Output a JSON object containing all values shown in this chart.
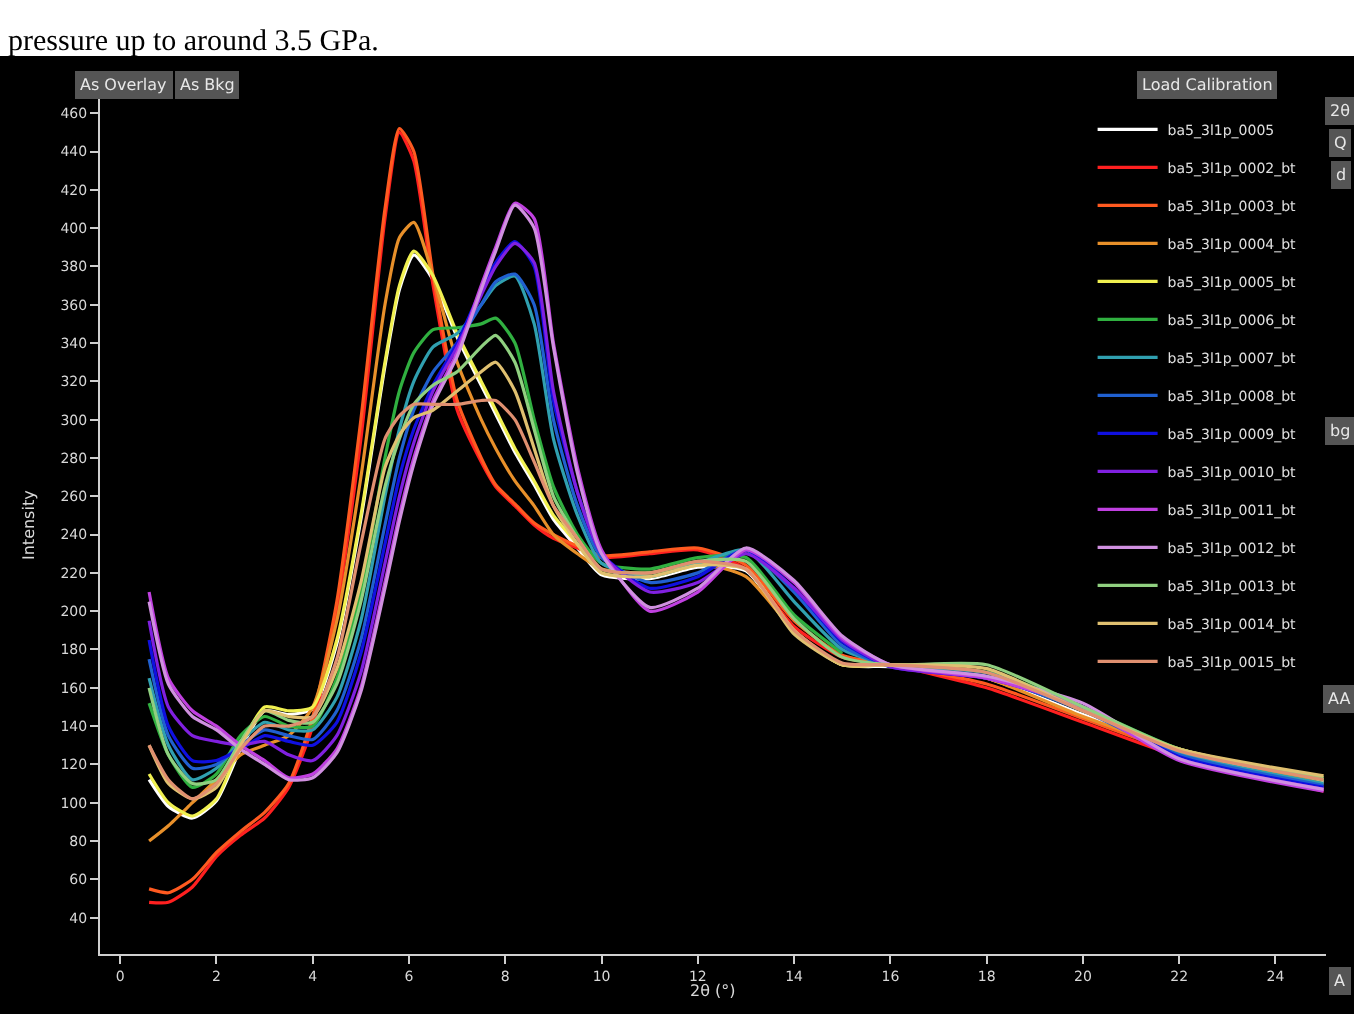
{
  "chart_data": {
    "type": "line",
    "xlabel": "2θ (°)",
    "ylabel": "Intensity",
    "annotations": [
      "pressure up to around 3.5 GPa.",
      "As Overlay",
      "As Bkg",
      "Load Calibration",
      "2θ",
      "Q",
      "d",
      "bg",
      "AA",
      "A"
    ],
    "x": [
      0.6,
      1,
      1.5,
      2,
      2.5,
      3,
      3.5,
      4,
      4.5,
      5,
      5.5,
      5.8,
      6.1,
      6.5,
      7,
      7.5,
      7.8,
      8.2,
      8.6,
      9,
      9.5,
      10,
      11,
      12,
      13,
      14,
      15,
      16,
      18,
      20,
      22,
      25
    ],
    "xlim": [
      -0.42,
      25.05
    ],
    "xticks": [
      0,
      2,
      4,
      6,
      8,
      10,
      12,
      14,
      16,
      18,
      20,
      22,
      24
    ],
    "ylim": [
      21,
      469
    ],
    "yticks": [
      40,
      60,
      80,
      100,
      120,
      140,
      160,
      180,
      200,
      220,
      240,
      260,
      280,
      300,
      320,
      340,
      360,
      380,
      400,
      420,
      440,
      460
    ],
    "grid": false,
    "legend": "top right",
    "marker": "none",
    "line_style": "solid",
    "series": [
      {
        "name": "ba5_3l1p_0005",
        "color": "#ffffff",
        "values": [
          112,
          98,
          92,
          101,
          128,
          148,
          146,
          149,
          183,
          248,
          328,
          368,
          386,
          373,
          343,
          318,
          303,
          283,
          266,
          248,
          233,
          219,
          217,
          223,
          221,
          189,
          172,
          171,
          165,
          146,
          127,
          111
        ]
      },
      {
        "name": "ba5_3l1p_0002_bt",
        "color": "#ff2020",
        "values": [
          48,
          48,
          56,
          72,
          83,
          92,
          108,
          140,
          200,
          290,
          405,
          450,
          435,
          370,
          305,
          278,
          265,
          255,
          245,
          238,
          233,
          228,
          230,
          232,
          222,
          192,
          176,
          172,
          160,
          142,
          124,
          106
        ]
      },
      {
        "name": "ba5_3l1p_0003_bt",
        "color": "#ff5a20",
        "values": [
          55,
          53,
          60,
          74,
          85,
          95,
          110,
          145,
          205,
          300,
          410,
          452,
          440,
          375,
          310,
          280,
          266,
          256,
          246,
          240,
          234,
          229,
          231,
          233,
          224,
          195,
          177,
          172,
          162,
          144,
          126,
          108
        ]
      },
      {
        "name": "ba5_3l1p_0004_bt",
        "color": "#e8902a",
        "values": [
          80,
          88,
          100,
          112,
          125,
          130,
          135,
          150,
          195,
          270,
          360,
          395,
          403,
          375,
          330,
          300,
          285,
          268,
          255,
          240,
          230,
          222,
          220,
          225,
          218,
          190,
          172,
          172,
          165,
          145,
          128,
          110
        ]
      },
      {
        "name": "ba5_3l1p_0005_bt",
        "color": "#f0f050",
        "values": [
          115,
          100,
          93,
          102,
          130,
          150,
          148,
          150,
          185,
          250,
          330,
          370,
          388,
          375,
          345,
          320,
          305,
          285,
          268,
          250,
          235,
          220,
          218,
          224,
          222,
          190,
          172,
          172,
          168,
          148,
          128,
          112
        ]
      },
      {
        "name": "ba5_3l1p_0006_bt",
        "color": "#30b040",
        "values": [
          152,
          125,
          108,
          115,
          135,
          145,
          140,
          140,
          165,
          210,
          280,
          315,
          335,
          347,
          348,
          350,
          353,
          340,
          300,
          265,
          240,
          225,
          222,
          228,
          228,
          198,
          178,
          null,
          170,
          150,
          128,
          112
        ]
      },
      {
        "name": "ba5_3l1p_0007_bt",
        "color": "#30a0b0",
        "values": [
          165,
          130,
          112,
          118,
          132,
          142,
          138,
          138,
          155,
          195,
          260,
          295,
          320,
          338,
          345,
          360,
          370,
          375,
          350,
          290,
          250,
          225,
          218,
          225,
          232,
          205,
          180,
          172,
          168,
          150,
          126,
          110
        ]
      },
      {
        "name": "ba5_3l1p_0008_bt",
        "color": "#2060d0",
        "values": [
          175,
          135,
          118,
          120,
          130,
          138,
          135,
          133,
          148,
          185,
          245,
          280,
          305,
          325,
          340,
          360,
          372,
          376,
          360,
          300,
          255,
          228,
          215,
          220,
          232,
          210,
          182,
          171,
          166,
          148,
          125,
          109
        ]
      },
      {
        "name": "ba5_3l1p_0009_bt",
        "color": "#1010e0",
        "values": [
          185,
          140,
          122,
          122,
          128,
          135,
          132,
          130,
          142,
          178,
          235,
          270,
          295,
          318,
          340,
          368,
          382,
          393,
          380,
          310,
          262,
          230,
          212,
          218,
          232,
          212,
          184,
          171,
          165,
          150,
          124,
          108
        ]
      },
      {
        "name": "ba5_3l1p_0010_bt",
        "color": "#8020e0",
        "values": [
          195,
          150,
          135,
          132,
          130,
          132,
          125,
          122,
          135,
          168,
          225,
          260,
          288,
          315,
          338,
          365,
          380,
          392,
          382,
          315,
          262,
          230,
          210,
          215,
          230,
          212,
          185,
          171,
          165,
          150,
          123,
          107
        ]
      },
      {
        "name": "ba5_3l1p_0011_bt",
        "color": "#c040e0",
        "values": [
          210,
          165,
          148,
          140,
          130,
          122,
          113,
          115,
          128,
          160,
          215,
          250,
          280,
          310,
          335,
          370,
          390,
          413,
          405,
          340,
          275,
          232,
          200,
          210,
          232,
          215,
          186,
          172,
          165,
          150,
          122,
          106
        ]
      },
      {
        "name": "ba5_3l1p_0012_bt",
        "color": "#d090e0",
        "values": [
          205,
          162,
          145,
          138,
          128,
          120,
          112,
          113,
          126,
          158,
          212,
          247,
          277,
          308,
          333,
          368,
          388,
          412,
          400,
          338,
          272,
          230,
          202,
          212,
          233,
          216,
          187,
          172,
          166,
          152,
          123,
          107
        ]
      },
      {
        "name": "ba5_3l1p_0013_bt",
        "color": "#90d080",
        "values": [
          160,
          125,
          110,
          112,
          132,
          148,
          143,
          142,
          162,
          205,
          265,
          290,
          308,
          318,
          325,
          338,
          344,
          330,
          295,
          260,
          238,
          222,
          220,
          226,
          226,
          196,
          176,
          172,
          172,
          150,
          128,
          113
        ]
      },
      {
        "name": "ba5_3l1p_0014_bt",
        "color": "#e0c070",
        "values": [
          130,
          110,
          102,
          108,
          130,
          148,
          145,
          145,
          170,
          215,
          275,
          292,
          301,
          305,
          315,
          325,
          330,
          315,
          285,
          255,
          235,
          220,
          218,
          224,
          222,
          188,
          172,
          172,
          170,
          148,
          128,
          114
        ]
      },
      {
        "name": "ba5_3l1p_0015_bt",
        "color": "#e09070",
        "values": [
          130,
          112,
          102,
          110,
          128,
          140,
          140,
          145,
          175,
          235,
          290,
          302,
          308,
          308,
          308,
          310,
          310,
          300,
          278,
          255,
          238,
          222,
          220,
          226,
          222,
          190,
          173,
          172,
          168,
          148,
          127,
          112
        ]
      }
    ]
  }
}
